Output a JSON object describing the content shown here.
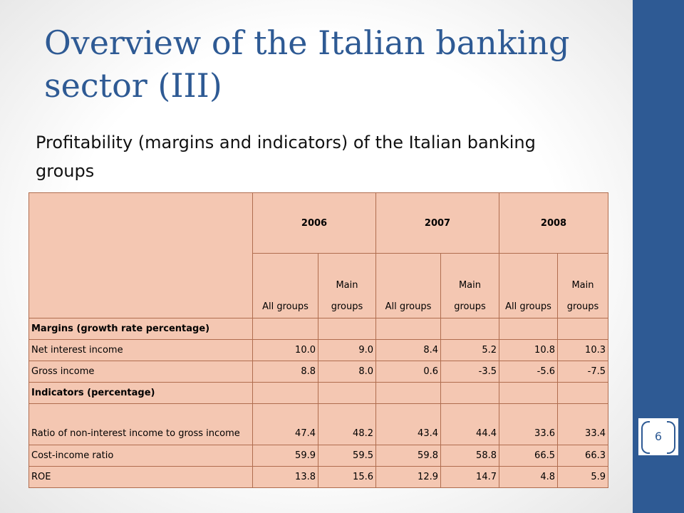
{
  "slide": {
    "title": "Overview of the Italian banking sector (III)",
    "subtitle": "Profitability  (margins and indicators) of the Italian banking groups",
    "page_number": "6"
  },
  "table": {
    "years": [
      "2006",
      "2007",
      "2008"
    ],
    "subheaders": [
      "All groups",
      "Main groups",
      "All groups",
      "Main groups",
      "All groups",
      "Main groups"
    ],
    "sections": [
      {
        "title": "Margins (growth rate percentage)",
        "rows": [
          {
            "label": "Net interest income",
            "values": [
              "10.0",
              "9.0",
              "8.4",
              "5.2",
              "10.8",
              "10.3"
            ]
          },
          {
            "label": "Gross income",
            "values": [
              "8.8",
              "8.0",
              "0.6",
              "-3.5",
              "-5.6",
              "-7.5"
            ]
          }
        ]
      },
      {
        "title": "Indicators (percentage)",
        "rows": [
          {
            "label": "Ratio of non-interest income to gross income",
            "values": [
              "47.4",
              "48.2",
              "43.4",
              "44.4",
              "33.6",
              "33.4"
            ]
          },
          {
            "label": "Cost-income ratio",
            "values": [
              "59.9",
              "59.5",
              "59.8",
              "58.8",
              "66.5",
              "66.3"
            ]
          },
          {
            "label": "ROE",
            "values": [
              "13.8",
              "15.6",
              "12.9",
              "14.7",
              "4.8",
              "5.9"
            ]
          }
        ]
      }
    ]
  },
  "colors": {
    "accent": "#2e5a94",
    "table_fill": "#f4c7b2",
    "table_border": "#b06d4f"
  }
}
